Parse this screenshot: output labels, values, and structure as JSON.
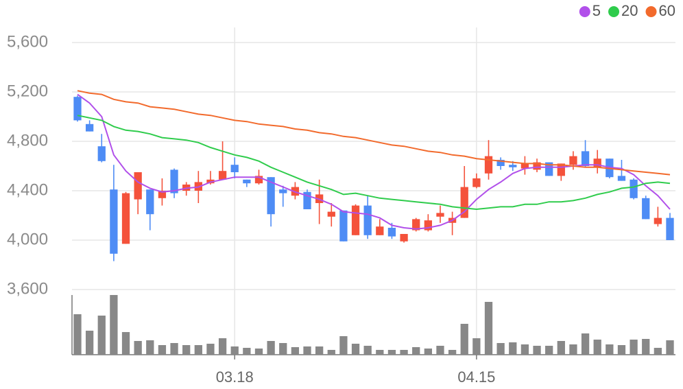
{
  "chart_data": {
    "type": "candlestick",
    "categories": [
      null,
      null,
      null,
      null,
      null,
      null,
      null,
      null,
      null,
      null,
      null,
      null,
      null,
      "03.18",
      null,
      null,
      null,
      null,
      null,
      null,
      null,
      null,
      null,
      null,
      null,
      null,
      null,
      null,
      null,
      null,
      null,
      null,
      null,
      "04.15",
      null,
      null,
      null,
      null,
      null,
      null,
      null,
      null,
      null,
      null,
      null,
      null,
      null,
      null,
      null,
      null
    ],
    "open": [
      5160,
      4940,
      4760,
      4410,
      3970,
      4330,
      4410,
      4340,
      4570,
      4400,
      4400,
      4460,
      4490,
      4610,
      4490,
      4460,
      4510,
      4410,
      4360,
      4390,
      4300,
      4190,
      4240,
      4040,
      4280,
      4040,
      4100,
      3990,
      4080,
      4080,
      4190,
      4140,
      4180,
      4430,
      4540,
      4650,
      4610,
      4580,
      4570,
      4630,
      4520,
      4610,
      4720,
      4590,
      4660,
      4520,
      4490,
      4340,
      4130,
      4180
    ],
    "high": [
      5170,
      4970,
      4860,
      4610,
      4390,
      4550,
      4410,
      4500,
      4580,
      4470,
      4560,
      4560,
      4800,
      4670,
      4490,
      4570,
      4510,
      4440,
      4470,
      4410,
      4490,
      4300,
      4240,
      4290,
      4360,
      4170,
      4140,
      4050,
      4180,
      4210,
      4280,
      4230,
      4600,
      4540,
      4810,
      4670,
      4640,
      4680,
      4660,
      4630,
      4620,
      4720,
      4810,
      4730,
      4660,
      4650,
      4500,
      4360,
      4270,
      4220
    ],
    "low": [
      4960,
      4880,
      4630,
      3830,
      3970,
      4210,
      4080,
      4280,
      4340,
      4360,
      4300,
      4450,
      4490,
      4500,
      4430,
      4450,
      4110,
      4270,
      4330,
      4250,
      4130,
      4110,
      3990,
      4040,
      4010,
      4040,
      4010,
      3980,
      4070,
      4070,
      4140,
      4040,
      4180,
      4420,
      4490,
      4570,
      4560,
      4530,
      4550,
      4520,
      4480,
      4570,
      4590,
      4540,
      4500,
      4480,
      4330,
      4170,
      4110,
      4000
    ],
    "close": [
      4970,
      4880,
      4640,
      3890,
      4380,
      4550,
      4210,
      4400,
      4380,
      4450,
      4470,
      4490,
      4560,
      4550,
      4460,
      4520,
      4210,
      4380,
      4430,
      4250,
      4370,
      4230,
      3990,
      4280,
      4040,
      4110,
      4030,
      4050,
      4170,
      4160,
      4220,
      4180,
      4430,
      4500,
      4680,
      4600,
      4590,
      4620,
      4630,
      4520,
      4620,
      4680,
      4600,
      4660,
      4510,
      4480,
      4340,
      4170,
      4180,
      4000
    ],
    "up_color": "#f4523b",
    "down_color": "#4e8cf5",
    "series": [
      {
        "name": "5",
        "color": "#b150ea",
        "values": [
          5180,
          5110,
          5000,
          4690,
          4560,
          4470,
          4420,
          4390,
          4400,
          4420,
          4430,
          4470,
          4490,
          4510,
          4510,
          4510,
          4470,
          4430,
          4390,
          4360,
          4330,
          4290,
          4230,
          4220,
          4210,
          4180,
          4120,
          4100,
          4090,
          4100,
          4120,
          4160,
          4230,
          4330,
          4410,
          4470,
          4540,
          4580,
          4590,
          4590,
          4590,
          4600,
          4610,
          4610,
          4590,
          4580,
          4530,
          4440,
          4360,
          4250
        ]
      },
      {
        "name": "20",
        "color": "#2fcc4c",
        "values": [
          5010,
          4990,
          4970,
          4920,
          4890,
          4880,
          4860,
          4830,
          4820,
          4810,
          4790,
          4750,
          4720,
          4690,
          4670,
          4640,
          4590,
          4550,
          4510,
          4470,
          4440,
          4410,
          4370,
          4380,
          4360,
          4340,
          4330,
          4320,
          4310,
          4300,
          4290,
          4270,
          4260,
          4250,
          4260,
          4270,
          4270,
          4290,
          4290,
          4310,
          4310,
          4320,
          4340,
          4370,
          4390,
          4420,
          4430,
          4460,
          4470,
          4460
        ]
      },
      {
        "name": "60",
        "color": "#f26a2c",
        "values": [
          5210,
          5190,
          5180,
          5140,
          5120,
          5110,
          5080,
          5070,
          5060,
          5040,
          5020,
          5010,
          4990,
          4970,
          4960,
          4940,
          4930,
          4920,
          4900,
          4890,
          4870,
          4860,
          4840,
          4830,
          4810,
          4790,
          4770,
          4760,
          4740,
          4720,
          4710,
          4690,
          4680,
          4660,
          4650,
          4640,
          4630,
          4620,
          4620,
          4610,
          4610,
          4600,
          4590,
          4590,
          4580,
          4570,
          4560,
          4550,
          4540,
          4530
        ]
      }
    ],
    "volume": {
      "color": "#888888",
      "ylim": [
        0,
        100
      ],
      "values": [
        59,
        35,
        57,
        87,
        33,
        20,
        21,
        14,
        17,
        14,
        14,
        16,
        24,
        12,
        10,
        9,
        20,
        17,
        11,
        12,
        12,
        7,
        27,
        16,
        13,
        7,
        7,
        7,
        11,
        9,
        13,
        7,
        45,
        24,
        77,
        17,
        18,
        15,
        13,
        13,
        20,
        15,
        31,
        22,
        15,
        14,
        22,
        23,
        10,
        21
      ]
    },
    "ylim": [
      3600,
      5600
    ],
    "yticks": [
      {
        "value": 3600,
        "label": "3,600"
      },
      {
        "value": 4000,
        "label": "4,000"
      },
      {
        "value": 4400,
        "label": "4,400"
      },
      {
        "value": 4800,
        "label": "4,800"
      },
      {
        "value": 5200,
        "label": "5,200"
      },
      {
        "value": 5600,
        "label": "5,600"
      }
    ],
    "grid": true,
    "legend": "top-right"
  }
}
